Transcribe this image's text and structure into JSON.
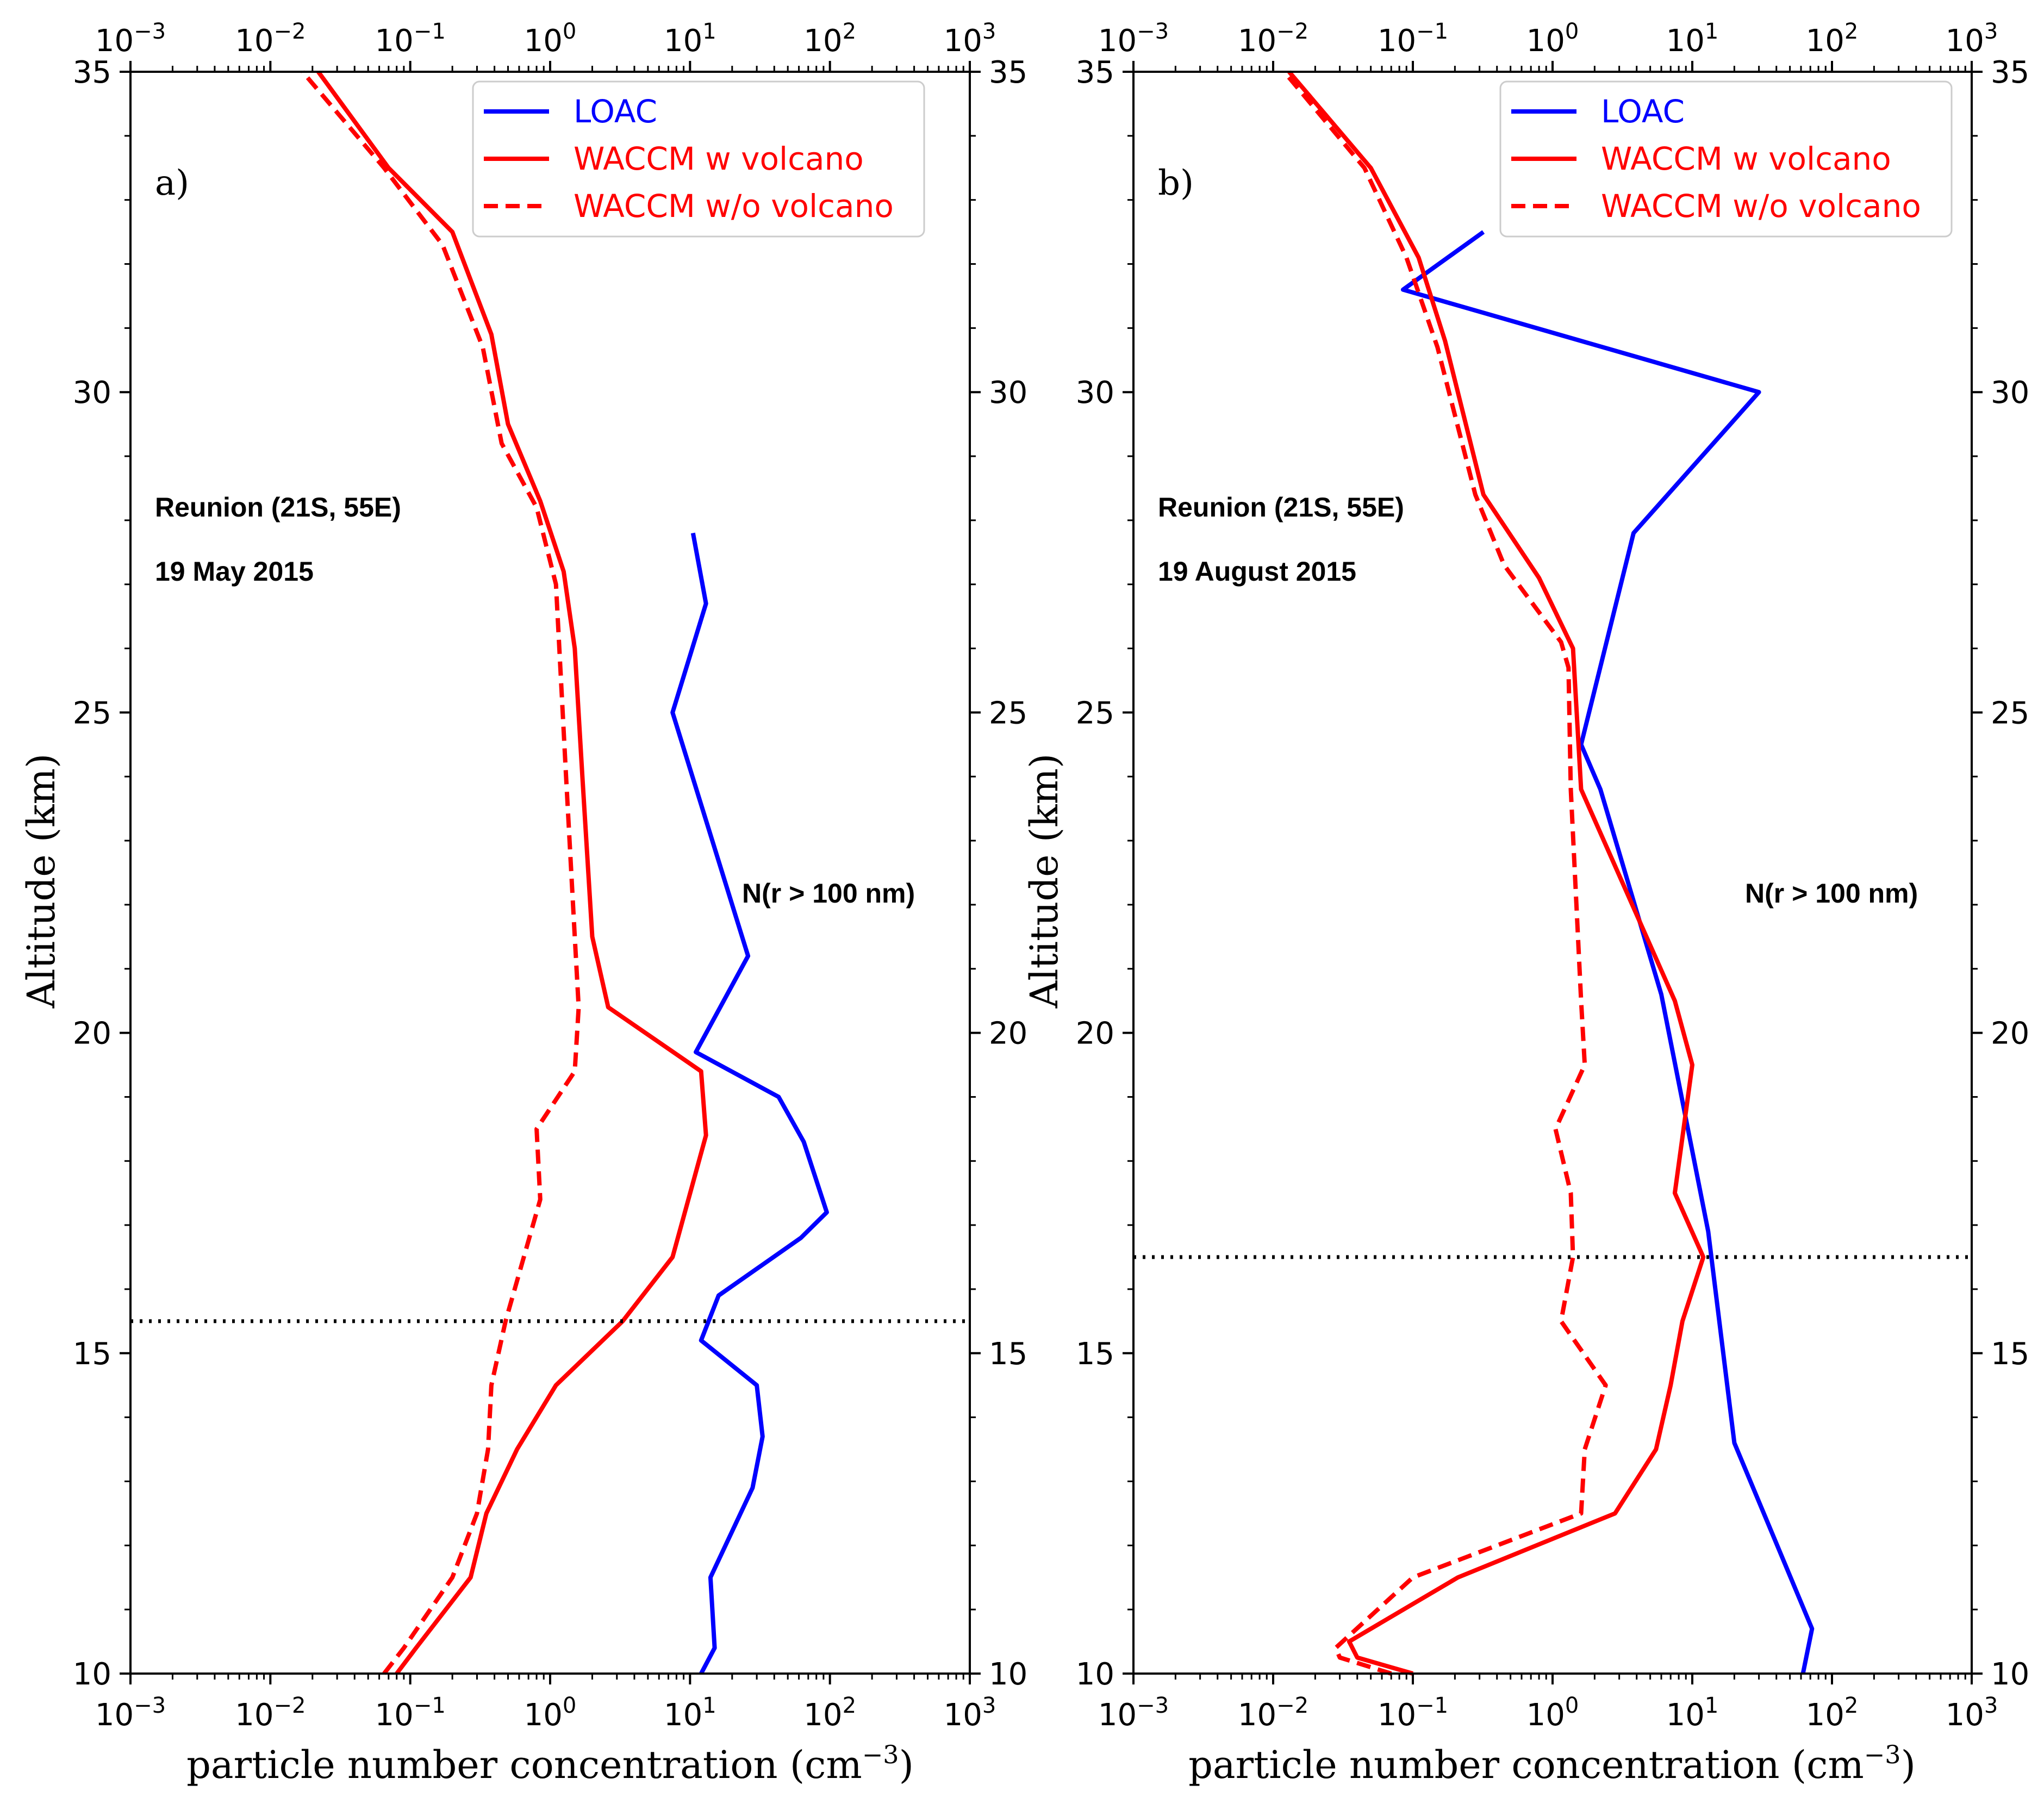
{
  "chart_data": [
    {
      "type": "line",
      "panel_label": "a)",
      "location": "Reunion (21S, 55E)",
      "date": "19 May 2015",
      "annotation": "N(r > 100 nm)",
      "xlabel": "particle number concentration (cm",
      "xlabel_exp": "−3",
      "xlabel_close": ")",
      "ylabel": "Altitude (km)",
      "xscale": "log",
      "xlim": [
        0.001,
        1000
      ],
      "ylim": [
        10,
        35
      ],
      "x_ticks": [
        0.001,
        0.01,
        0.1,
        1,
        10,
        100,
        1000
      ],
      "x_tick_base": "10",
      "x_tick_exponents": [
        "−3",
        "−2",
        "−1",
        "0",
        "1",
        "2",
        "3"
      ],
      "y_ticks": [
        10,
        15,
        20,
        25,
        30,
        35
      ],
      "y_tick_labels": [
        "10",
        "15",
        "20",
        "25",
        "30",
        "35"
      ],
      "tropopause_altitude": 15.5,
      "legend_position": "top-right",
      "series": [
        {
          "name": "LOAC",
          "color": "#0000ff",
          "style": "solid",
          "x": [
            12,
            15,
            14,
            28,
            33,
            30,
            12,
            16,
            62,
            95,
            65,
            43,
            11,
            26,
            7.5,
            13,
            10.5
          ],
          "y": [
            10,
            10.4,
            11.5,
            12.9,
            13.7,
            14.5,
            15.2,
            15.9,
            16.8,
            17.2,
            18.3,
            19,
            19.7,
            21.2,
            25,
            26.7,
            27.8
          ]
        },
        {
          "name": "WACCM w volcano",
          "color": "#ff0000",
          "style": "solid",
          "x": [
            0.08,
            0.11,
            0.27,
            0.35,
            0.58,
            1.1,
            3.3,
            7.5,
            13,
            12,
            2.6,
            2,
            1.7,
            1.5,
            1.25,
            0.85,
            0.5,
            0.38,
            0.2,
            0.07,
            0.022
          ],
          "y": [
            10,
            10.4,
            11.5,
            12.5,
            13.5,
            14.5,
            15.5,
            16.5,
            18.4,
            19.4,
            20.4,
            21.5,
            24,
            26,
            27.2,
            28.3,
            29.5,
            30.9,
            32.5,
            33.5,
            35
          ]
        },
        {
          "name": "WACCM w/o volcano",
          "color": "#ff0000",
          "style": "dashed",
          "x": [
            0.065,
            0.09,
            0.2,
            0.3,
            0.36,
            0.38,
            0.48,
            0.85,
            0.8,
            1.5,
            1.6,
            1.5,
            1.3,
            1.1,
            0.8,
            0.45,
            0.33,
            0.17,
            0.065,
            0.017
          ],
          "y": [
            10,
            10.4,
            11.5,
            12.5,
            13.5,
            14.5,
            15.5,
            17.4,
            18.5,
            19.4,
            20.4,
            21.5,
            24,
            27,
            28.2,
            29.2,
            30.7,
            32.3,
            33.5,
            35
          ]
        }
      ]
    },
    {
      "type": "line",
      "panel_label": "b)",
      "location": "Reunion (21S, 55E)",
      "date": "19 August 2015",
      "annotation": "N(r > 100 nm)",
      "xlabel": "particle number concentration (cm",
      "xlabel_exp": "−3",
      "xlabel_close": ")",
      "ylabel": "Altitude (km)",
      "xscale": "log",
      "xlim": [
        0.001,
        1000
      ],
      "ylim": [
        10,
        35
      ],
      "x_ticks": [
        0.001,
        0.01,
        0.1,
        1,
        10,
        100,
        1000
      ],
      "x_tick_base": "10",
      "x_tick_exponents": [
        "−3",
        "−2",
        "−1",
        "0",
        "1",
        "2",
        "3"
      ],
      "y_ticks": [
        10,
        15,
        20,
        25,
        30,
        35
      ],
      "y_tick_labels": [
        "10",
        "15",
        "20",
        "25",
        "30",
        "35"
      ],
      "tropopause_altitude": 16.5,
      "legend_position": "top-right",
      "series": [
        {
          "name": "LOAC",
          "color": "#0000ff",
          "style": "solid",
          "x": [
            62,
            72,
            20,
            13,
            6,
            2.2,
            1.6,
            3.8,
            30,
            0.085,
            0.32
          ],
          "y": [
            10,
            10.7,
            13.6,
            16.9,
            20.6,
            23.8,
            24.5,
            27.8,
            30,
            31.6,
            32.5
          ]
        },
        {
          "name": "WACCM w volcano",
          "color": "#ff0000",
          "style": "solid",
          "x": [
            0.1,
            0.04,
            0.035,
            0.21,
            2.8,
            5.5,
            7,
            8.5,
            12,
            7.5,
            10,
            7.5,
            1.6,
            1.4,
            0.8,
            0.32,
            0.17,
            0.11,
            0.05,
            0.013
          ],
          "y": [
            10,
            10.25,
            10.5,
            11.5,
            12.5,
            13.5,
            14.5,
            15.5,
            16.5,
            17.5,
            19.5,
            20.5,
            23.8,
            26,
            27.1,
            28.4,
            30.8,
            32.1,
            33.5,
            35
          ]
        },
        {
          "name": "WACCM w/o volcano",
          "color": "#ff0000",
          "style": "dashed",
          "x": [
            0.07,
            0.03,
            0.028,
            0.1,
            1.6,
            1.7,
            2.4,
            1.15,
            1.4,
            1.35,
            1.05,
            1.7,
            1.6,
            1.35,
            1.3,
            1.15,
            0.45,
            0.28,
            0.15,
            0.09,
            0.045,
            0.012
          ],
          "y": [
            10,
            10.25,
            10.4,
            11.5,
            12.5,
            13.5,
            14.5,
            15.5,
            16.5,
            17.5,
            18.5,
            19.5,
            20.5,
            23.8,
            25.7,
            26.1,
            27.3,
            28.4,
            30.7,
            32.1,
            33.5,
            35
          ]
        }
      ]
    }
  ]
}
